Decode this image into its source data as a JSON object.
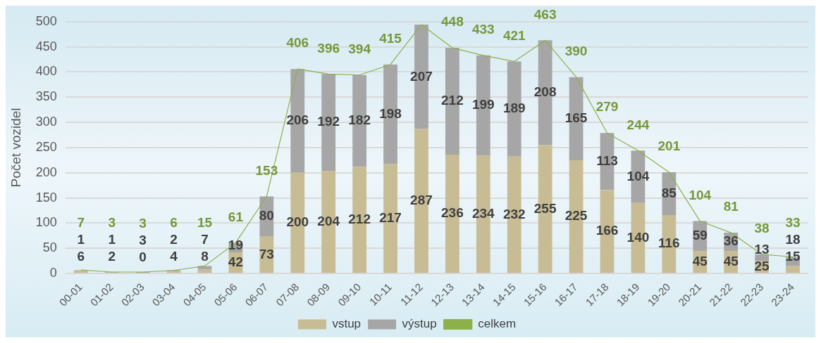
{
  "chart_data": {
    "type": "bar",
    "stacked": true,
    "ylabel": "Počet vozidel",
    "categories": [
      "00-01",
      "01-02",
      "02-03",
      "03-04",
      "04-05",
      "05-06",
      "06-07",
      "07-08",
      "08-09",
      "09-10",
      "10-11",
      "11-12",
      "12-13",
      "13-14",
      "14-15",
      "15-16",
      "16-17",
      "17-18",
      "18-19",
      "19-20",
      "20-21",
      "21-22",
      "22-23",
      "23-24"
    ],
    "series": [
      {
        "name": "vstup",
        "color": "#c8bc94",
        "values": [
          6,
          2,
          0,
          4,
          8,
          42,
          73,
          200,
          204,
          212,
          217,
          287,
          236,
          234,
          232,
          255,
          225,
          166,
          140,
          116,
          45,
          45,
          25,
          15
        ],
        "value_labels": [
          "6",
          "2",
          "0",
          "4",
          "8",
          "42",
          "73",
          "200",
          "204",
          "212",
          "217",
          "287",
          "236",
          "234",
          "232",
          "255",
          "225",
          "166",
          "140",
          "116",
          "45",
          "45",
          "25",
          "15"
        ]
      },
      {
        "name": "výstup",
        "color": "#a6a6a6",
        "values": [
          1,
          1,
          3,
          2,
          7,
          19,
          80,
          206,
          192,
          182,
          198,
          207,
          212,
          199,
          189,
          208,
          165,
          113,
          104,
          85,
          59,
          36,
          13,
          18
        ],
        "value_labels": [
          "1",
          "1",
          "3",
          "2",
          "7",
          "19",
          "80",
          "206",
          "192",
          "182",
          "198",
          "207",
          "212",
          "199",
          "189",
          "208",
          "165",
          "113",
          "104",
          "85",
          "59",
          "36",
          "13",
          "18"
        ]
      },
      {
        "name": "celkem",
        "type": "line",
        "color": "#8db04a",
        "values": [
          7,
          3,
          3,
          6,
          15,
          61,
          153,
          406,
          396,
          394,
          415,
          494,
          448,
          433,
          421,
          463,
          390,
          279,
          244,
          201,
          104,
          81,
          38,
          33
        ],
        "value_labels": [
          "7",
          "3",
          "3",
          "6",
          "15",
          "61",
          "153",
          "406",
          "396",
          "394",
          "415",
          null,
          "448",
          "433",
          "421",
          "463",
          "390",
          "279",
          "244",
          "201",
          "104",
          "81",
          "38",
          "33"
        ]
      }
    ],
    "ylim": [
      0,
      500
    ],
    "yticks": [
      0,
      50,
      100,
      150,
      200,
      250,
      300,
      350,
      400,
      450,
      500
    ],
    "grid": "y",
    "legend": "bottom",
    "marker": "none"
  }
}
